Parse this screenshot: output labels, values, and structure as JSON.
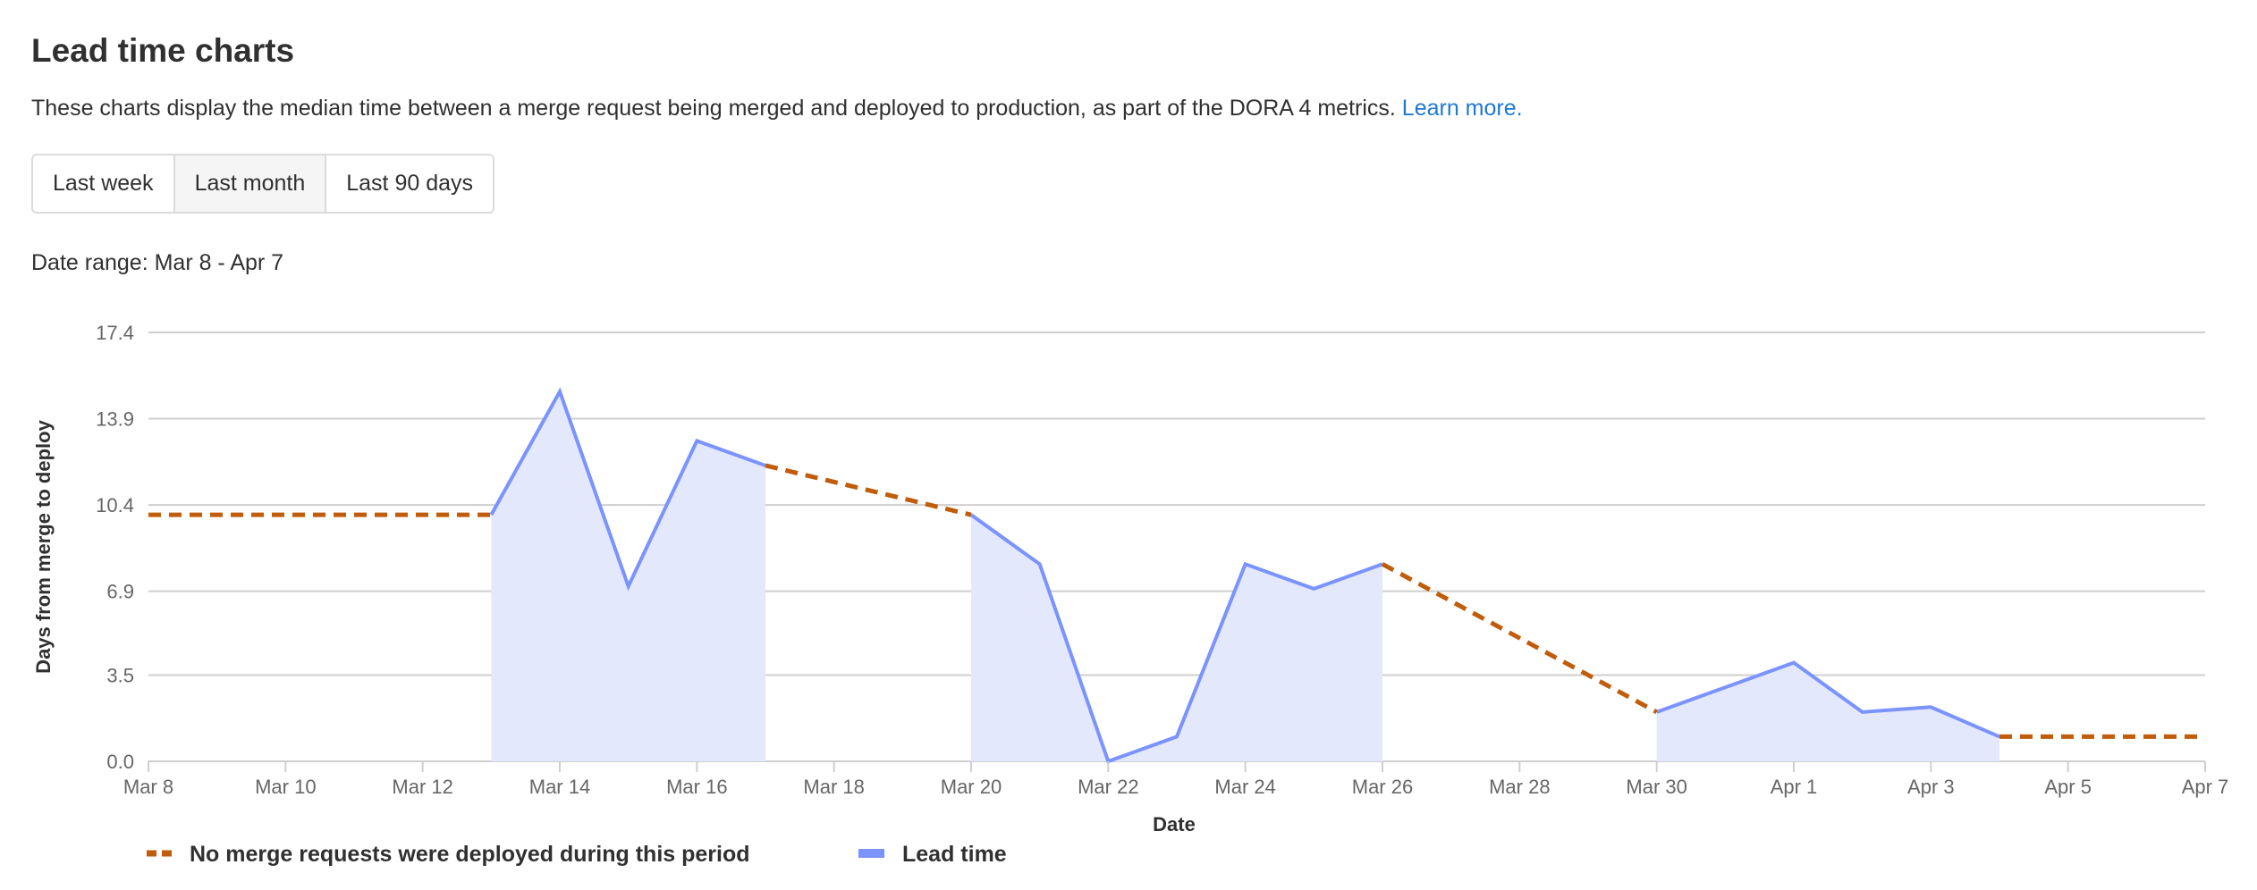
{
  "header": {
    "title": "Lead time charts",
    "description": "These charts display the median time between a merge request being merged and deployed to production, as part of the DORA 4 metrics.",
    "learn_more": "Learn more."
  },
  "range_buttons": [
    {
      "label": "Last week",
      "active": false
    },
    {
      "label": "Last month",
      "active": true
    },
    {
      "label": "Last 90 days",
      "active": false
    }
  ],
  "date_range": "Date range: Mar 8 - Apr 7",
  "chart_data": {
    "type": "area",
    "xlabel": "Date",
    "ylabel": "Days from merge to deploy",
    "ylim": [
      0,
      17.4
    ],
    "y_ticks": [
      "0.0",
      "3.5",
      "6.9",
      "10.4",
      "13.9",
      "17.4"
    ],
    "x": [
      "Mar 8",
      "Mar 9",
      "Mar 10",
      "Mar 11",
      "Mar 12",
      "Mar 13",
      "Mar 14",
      "Mar 15",
      "Mar 16",
      "Mar 17",
      "Mar 18",
      "Mar 19",
      "Mar 20",
      "Mar 21",
      "Mar 22",
      "Mar 23",
      "Mar 24",
      "Mar 25",
      "Mar 26",
      "Mar 27",
      "Mar 28",
      "Mar 29",
      "Mar 30",
      "Mar 31",
      "Apr 1",
      "Apr 2",
      "Apr 3",
      "Apr 4",
      "Apr 5",
      "Apr 6",
      "Apr 7"
    ],
    "x_ticks": [
      "Mar 8",
      "Mar 10",
      "Mar 12",
      "Mar 14",
      "Mar 16",
      "Mar 18",
      "Mar 20",
      "Mar 22",
      "Mar 24",
      "Mar 26",
      "Mar 28",
      "Mar 30",
      "Apr 1",
      "Apr 3",
      "Apr 5",
      "Apr 7"
    ],
    "grid": true,
    "legend_position": "bottom-left",
    "series": [
      {
        "name": "Lead time",
        "style": "solid-area",
        "color": "#7b93ff",
        "fill": "#e3e8fc",
        "values": [
          null,
          null,
          null,
          null,
          null,
          10.0,
          15.0,
          7.1,
          13.0,
          12.0,
          null,
          null,
          10.0,
          8.0,
          0.0,
          1.0,
          8.0,
          7.0,
          8.0,
          null,
          null,
          null,
          2.0,
          3.0,
          4.0,
          2.0,
          2.2,
          1.0,
          null,
          null,
          null
        ]
      },
      {
        "name": "No merge requests were deployed during this period",
        "style": "dashed",
        "color": "#c05c0a",
        "segments": [
          [
            [
              "Mar 8",
              10.0
            ],
            [
              "Mar 13",
              10.0
            ]
          ],
          [
            [
              "Mar 17",
              12.0
            ],
            [
              "Mar 20",
              10.0
            ]
          ],
          [
            [
              "Mar 26",
              8.0
            ],
            [
              "Mar 30",
              2.0
            ]
          ],
          [
            [
              "Apr 4",
              1.0
            ],
            [
              "Apr 7",
              1.0
            ]
          ]
        ]
      }
    ]
  }
}
